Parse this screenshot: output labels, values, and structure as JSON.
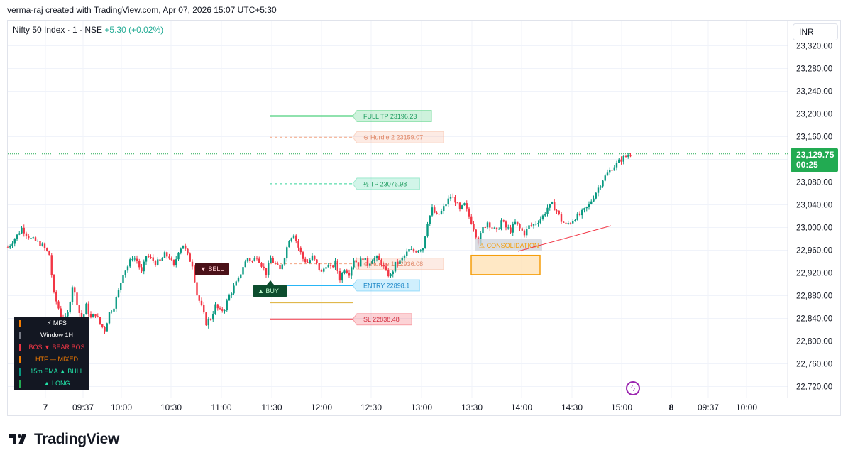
{
  "header": {
    "attribution": "verma-raj created with TradingView.com, Apr 07, 2026 15:07 UTC+5:30",
    "symbol": "Nifty 50 Index · 1 · NSE",
    "change": "+5.30 (+0.02%)",
    "currency": "INR"
  },
  "price_label": {
    "price": "23,129.75",
    "countdown": "00:25"
  },
  "footer": {
    "brand": "TradingView"
  },
  "dashboard": [
    {
      "label": "⚡ MFS",
      "color": "#f57c00",
      "text_color": "#ffffff"
    },
    {
      "label": "Window  1H",
      "color": "#787b86",
      "text_color": "#ffffff"
    },
    {
      "label": "BOS    ▼ BEAR BOS",
      "color": "#f23645",
      "text_color": "#f23645"
    },
    {
      "label": "HTF    — MIXED",
      "color": "#f57c00",
      "text_color": "#f57c00"
    },
    {
      "label": "15m EMA  ▲ BULL",
      "color": "#089981",
      "text_color": "#22e3a8"
    },
    {
      "label": "▲ LONG",
      "color": "#22ab52",
      "text_color": "#22e3a8"
    }
  ],
  "icons": {
    "flash": "lightning-icon",
    "logo": "tradingview-logo-icon"
  },
  "chart_data": {
    "type": "candlestick",
    "ylim": [
      22700,
      23340
    ],
    "y_ticks": [
      "23,320.00",
      "23,280.00",
      "23,240.00",
      "23,200.00",
      "23,160.00",
      "23,120.00",
      "23,080.00",
      "23,040.00",
      "23,000.00",
      "22,960.00",
      "22,920.00",
      "22,880.00",
      "22,840.00",
      "22,800.00",
      "22,760.00",
      "22,720.00"
    ],
    "x_ticks": [
      "7",
      "09:37",
      "10:00",
      "10:30",
      "11:00",
      "11:30",
      "12:00",
      "12:30",
      "13:00",
      "13:30",
      "14:00",
      "14:30",
      "15:00",
      "8",
      "09:37",
      "10:00"
    ],
    "current_price": 23129.75,
    "colors": {
      "up": "#089981",
      "down": "#f23645"
    },
    "levels": [
      {
        "name": "FULL TP",
        "label": "FULL TP  23196.23",
        "value": 23196.23,
        "color": "#22c55e",
        "style": "solid"
      },
      {
        "name": "Hurdle 2",
        "label": "⊖ Hurdle 2  23159.07",
        "value": 23159.07,
        "color": "#f4a582",
        "style": "dashed"
      },
      {
        "name": "½ TP",
        "label": "½ TP  23076.98",
        "value": 23076.98,
        "color": "#34d399",
        "style": "dashed"
      },
      {
        "name": "Hurdle 1",
        "label": "⊖ Hurdle 1  22936.08",
        "value": 22936.08,
        "color": "#f4a582",
        "style": "dashed"
      },
      {
        "name": "ENTRY",
        "label": "ENTRY  22898.1",
        "value": 22898.1,
        "color": "#29b6f6",
        "style": "solid"
      },
      {
        "name": "mid",
        "label": "",
        "value": 22868,
        "color": "#e0b84c",
        "style": "solid"
      },
      {
        "name": "SL",
        "label": "SL  22838.48",
        "value": 22838.48,
        "color": "#f23645",
        "style": "solid"
      }
    ],
    "signals": [
      {
        "type": "SELL",
        "label": "▼ SELL",
        "price": 22935,
        "time": 36
      },
      {
        "type": "BUY",
        "label": "▲ BUY",
        "price": 22890,
        "time": 48
      }
    ],
    "consolidation": {
      "label": "⚠ CONSOLIDATION",
      "time_start": 91,
      "time_end": 105,
      "low": 22917,
      "high": 22951
    },
    "trendline": {
      "t1": 102,
      "p1": 22958,
      "t2": 123,
      "p2": 23004,
      "color": "#f23645"
    },
    "price_path": [
      [
        0,
        22965
      ],
      [
        2,
        22986
      ],
      [
        3,
        22999
      ],
      [
        5,
        22980
      ],
      [
        7,
        22972
      ],
      [
        8,
        22963
      ],
      [
        9,
        22952
      ],
      [
        10,
        22882
      ],
      [
        11,
        22858
      ],
      [
        12,
        22830
      ],
      [
        13,
        22848
      ],
      [
        14,
        22898
      ],
      [
        15,
        22868
      ],
      [
        16,
        22832
      ],
      [
        17,
        22862
      ],
      [
        18,
        22840
      ],
      [
        19,
        22848
      ],
      [
        20,
        22830
      ],
      [
        21,
        22820
      ],
      [
        22,
        22850
      ],
      [
        23,
        22862
      ],
      [
        24,
        22888
      ],
      [
        25,
        22920
      ],
      [
        26,
        22932
      ],
      [
        27,
        22948
      ],
      [
        28,
        22942
      ],
      [
        29,
        22920
      ],
      [
        30,
        22950
      ],
      [
        31,
        22945
      ],
      [
        32,
        22938
      ],
      [
        33,
        22940
      ],
      [
        34,
        22952
      ],
      [
        35,
        22948
      ],
      [
        36,
        22930
      ],
      [
        37,
        22960
      ],
      [
        38,
        22970
      ],
      [
        39,
        22950
      ],
      [
        40,
        22935
      ],
      [
        41,
        22882
      ],
      [
        42,
        22860
      ],
      [
        43,
        22832
      ],
      [
        44,
        22840
      ],
      [
        45,
        22862
      ],
      [
        46,
        22852
      ],
      [
        47,
        22858
      ],
      [
        48,
        22880
      ],
      [
        49,
        22895
      ],
      [
        50,
        22908
      ],
      [
        51,
        22932
      ],
      [
        52,
        22946
      ],
      [
        53,
        22940
      ],
      [
        54,
        22950
      ],
      [
        55,
        22935
      ],
      [
        56,
        22920
      ],
      [
        57,
        22945
      ],
      [
        58,
        22935
      ],
      [
        59,
        22925
      ],
      [
        60,
        22950
      ],
      [
        61,
        22980
      ],
      [
        62,
        22990
      ],
      [
        63,
        22965
      ],
      [
        64,
        22945
      ],
      [
        65,
        22938
      ],
      [
        66,
        22948
      ],
      [
        67,
        22935
      ],
      [
        68,
        22920
      ],
      [
        69,
        22935
      ],
      [
        70,
        22928
      ],
      [
        71,
        22938
      ],
      [
        72,
        22910
      ],
      [
        73,
        22928
      ],
      [
        74,
        22920
      ],
      [
        75,
        22945
      ],
      [
        76,
        22935
      ],
      [
        77,
        22948
      ],
      [
        78,
        22935
      ],
      [
        79,
        22945
      ],
      [
        80,
        22945
      ],
      [
        81,
        22938
      ],
      [
        82,
        22920
      ],
      [
        83,
        22915
      ],
      [
        84,
        22935
      ],
      [
        85,
        22940
      ],
      [
        86,
        22950
      ],
      [
        87,
        22960
      ],
      [
        88,
        22958
      ],
      [
        89,
        22962
      ],
      [
        90,
        22965
      ],
      [
        91,
        23010
      ],
      [
        92,
        23032
      ],
      [
        93,
        23020
      ],
      [
        94,
        23028
      ],
      [
        95,
        23042
      ],
      [
        96,
        23055
      ],
      [
        97,
        23048
      ],
      [
        98,
        23030
      ],
      [
        99,
        23040
      ],
      [
        100,
        23020
      ],
      [
        101,
        23000
      ],
      [
        102,
        22975
      ],
      [
        103,
        22998
      ],
      [
        104,
        23010
      ],
      [
        105,
        23000
      ],
      [
        106,
        22992
      ],
      [
        107,
        23012
      ],
      [
        108,
        23000
      ],
      [
        109,
        22995
      ],
      [
        110,
        23008
      ],
      [
        111,
        22998
      ],
      [
        112,
        22990
      ],
      [
        113,
        23002
      ],
      [
        114,
        23005
      ],
      [
        115,
        23012
      ],
      [
        116,
        23020
      ],
      [
        117,
        23035
      ],
      [
        118,
        23040
      ],
      [
        119,
        23030
      ],
      [
        120,
        23012
      ],
      [
        121,
        23005
      ],
      [
        122,
        23010
      ],
      [
        123,
        23018
      ],
      [
        124,
        23022
      ],
      [
        125,
        23030
      ],
      [
        126,
        23040
      ],
      [
        127,
        23055
      ],
      [
        128,
        23070
      ],
      [
        129,
        23085
      ],
      [
        130,
        23095
      ],
      [
        131,
        23105
      ],
      [
        132,
        23112
      ],
      [
        133,
        23120
      ],
      [
        134,
        23125
      ],
      [
        135,
        23129.75
      ]
    ]
  }
}
